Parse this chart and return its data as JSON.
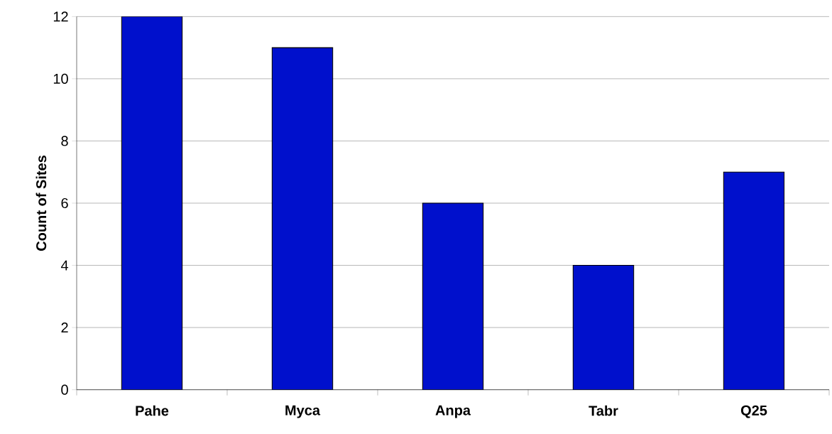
{
  "chart_data": {
    "type": "bar",
    "ylabel": "Count of Sites",
    "categories": [
      "Pahe",
      "Myca",
      "Anpa",
      "Tabr",
      "Q25"
    ],
    "values": [
      12,
      11,
      6,
      4,
      7
    ],
    "color": "#0010cc",
    "ylim": [
      0,
      12
    ],
    "yticks": [
      0,
      2,
      4,
      6,
      8,
      10,
      12
    ],
    "grid": "y"
  }
}
